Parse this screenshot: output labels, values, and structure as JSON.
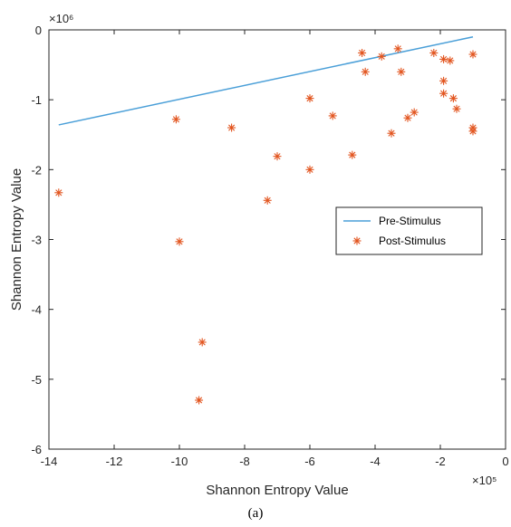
{
  "caption": "(a)",
  "chart_data": {
    "type": "scatter",
    "xlabel": "Shannon Entropy Value",
    "ylabel": "Shannon Entropy Value",
    "x_multiplier": "×10⁵",
    "y_multiplier": "×10⁶",
    "xlim": [
      -14,
      0
    ],
    "ylim": [
      -6,
      0
    ],
    "x_ticks": [
      -14,
      -12,
      -10,
      -8,
      -6,
      -4,
      -2,
      0
    ],
    "y_ticks": [
      -6,
      -5,
      -4,
      -3,
      -2,
      -1,
      0
    ],
    "x_tick_labels": [
      "-14",
      "-12",
      "-10",
      "-8",
      "-6",
      "-4",
      "-2",
      "0"
    ],
    "y_tick_labels": [
      "-6",
      "-5",
      "-4",
      "-3",
      "-2",
      "-1",
      "0"
    ],
    "grid": false,
    "legend_position": "right",
    "series": [
      {
        "name": "Pre-Stimulus",
        "type": "line",
        "color": "#4a9fd8",
        "points": [
          [
            -13.7,
            -1.36
          ],
          [
            -1.0,
            -0.1
          ]
        ]
      },
      {
        "name": "Post-Stimulus",
        "type": "scatter",
        "marker": "asterisk",
        "color": "#e2541e",
        "points": [
          [
            -13.7,
            -2.33
          ],
          [
            -10.1,
            -1.28
          ],
          [
            -10.0,
            -3.03
          ],
          [
            -9.3,
            -4.47
          ],
          [
            -9.4,
            -5.3
          ],
          [
            -8.4,
            -1.4
          ],
          [
            -7.3,
            -2.44
          ],
          [
            -7.0,
            -1.81
          ],
          [
            -6.0,
            -0.98
          ],
          [
            -6.0,
            -2.0
          ],
          [
            -5.3,
            -1.23
          ],
          [
            -4.7,
            -1.79
          ],
          [
            -4.4,
            -0.33
          ],
          [
            -4.3,
            -0.6
          ],
          [
            -3.8,
            -0.38
          ],
          [
            -3.5,
            -1.48
          ],
          [
            -3.3,
            -0.27
          ],
          [
            -3.2,
            -0.6
          ],
          [
            -3.0,
            -1.26
          ],
          [
            -2.8,
            -1.18
          ],
          [
            -2.2,
            -0.33
          ],
          [
            -1.9,
            -0.42
          ],
          [
            -1.7,
            -0.44
          ],
          [
            -1.9,
            -0.73
          ],
          [
            -1.9,
            -0.91
          ],
          [
            -1.6,
            -0.98
          ],
          [
            -1.5,
            -1.13
          ],
          [
            -1.0,
            -0.35
          ],
          [
            -1.0,
            -1.4
          ],
          [
            -1.0,
            -1.45
          ]
        ]
      }
    ]
  }
}
